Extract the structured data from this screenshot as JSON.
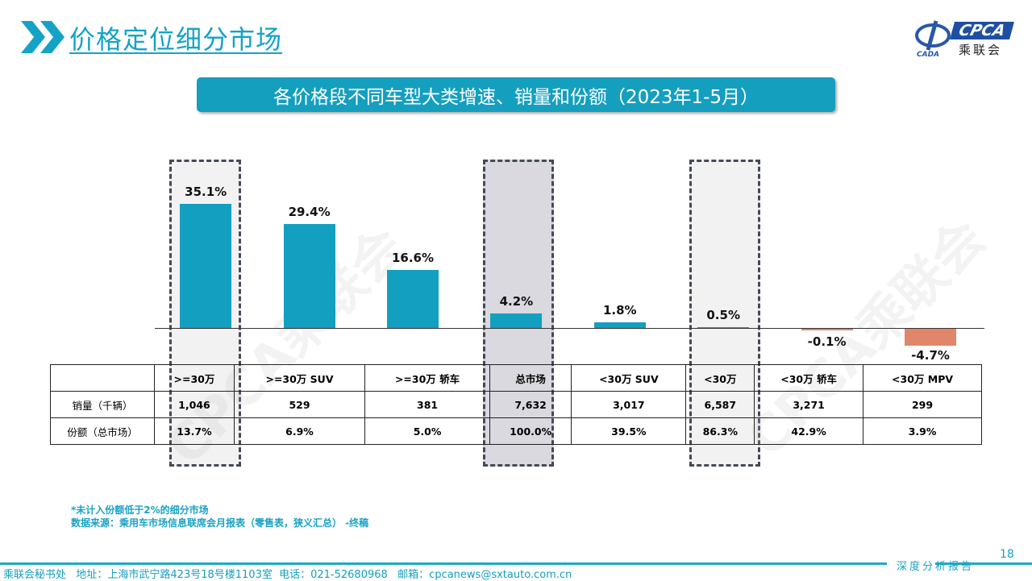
{
  "header": {
    "title": "价格定位细分市场",
    "logo_text": "CPCA 乘联会",
    "logo_sub": "CADA"
  },
  "chart_data": {
    "type": "bar",
    "title": "各价格段不同车型大类增速、销量和份额（2023年1-5月）",
    "categories": [
      ">=30万",
      ">=30万 SUV",
      ">=30万 轿车",
      "总市场",
      "<30万 SUV",
      "<30万",
      "<30万 轿车",
      "<30万 MPV"
    ],
    "values": [
      35.1,
      29.4,
      16.6,
      4.2,
      1.8,
      0.5,
      -0.1,
      -4.7
    ],
    "value_labels": [
      "35.1%",
      "29.4%",
      "16.6%",
      "4.2%",
      "1.8%",
      "0.5%",
      "-0.1%",
      "-4.7%"
    ],
    "highlighted": [
      ">=30万",
      "总市场",
      "<30万"
    ],
    "colors": {
      "positive": "#139fc0",
      "negative": "#e0876b"
    },
    "table": {
      "rows": [
        {
          "label": "销量（千辆）",
          "values": [
            "1,046",
            "529",
            "381",
            "7,632",
            "3,017",
            "6,587",
            "3,271",
            "299"
          ]
        },
        {
          "label": "份额（总市场）",
          "values": [
            "13.7%",
            "6.9%",
            "5.0%",
            "100.0%",
            "39.5%",
            "86.3%",
            "42.9%",
            "3.9%"
          ]
        }
      ]
    }
  },
  "notes": {
    "note1": "*未计入份额低于2%的细分市场",
    "source": "数据来源：乘用车市场信息联席会月报表（零售表，狭义汇总） -终稿"
  },
  "footer": {
    "text": "乘联会秘书处   地址：上海市武宁路423号18号楼1103室  电话：021-52680968   邮箱：cpcanews@sxtauto.com.cn",
    "report": "深度分析报告",
    "page": "18"
  },
  "watermark": "CPCA乘联会"
}
